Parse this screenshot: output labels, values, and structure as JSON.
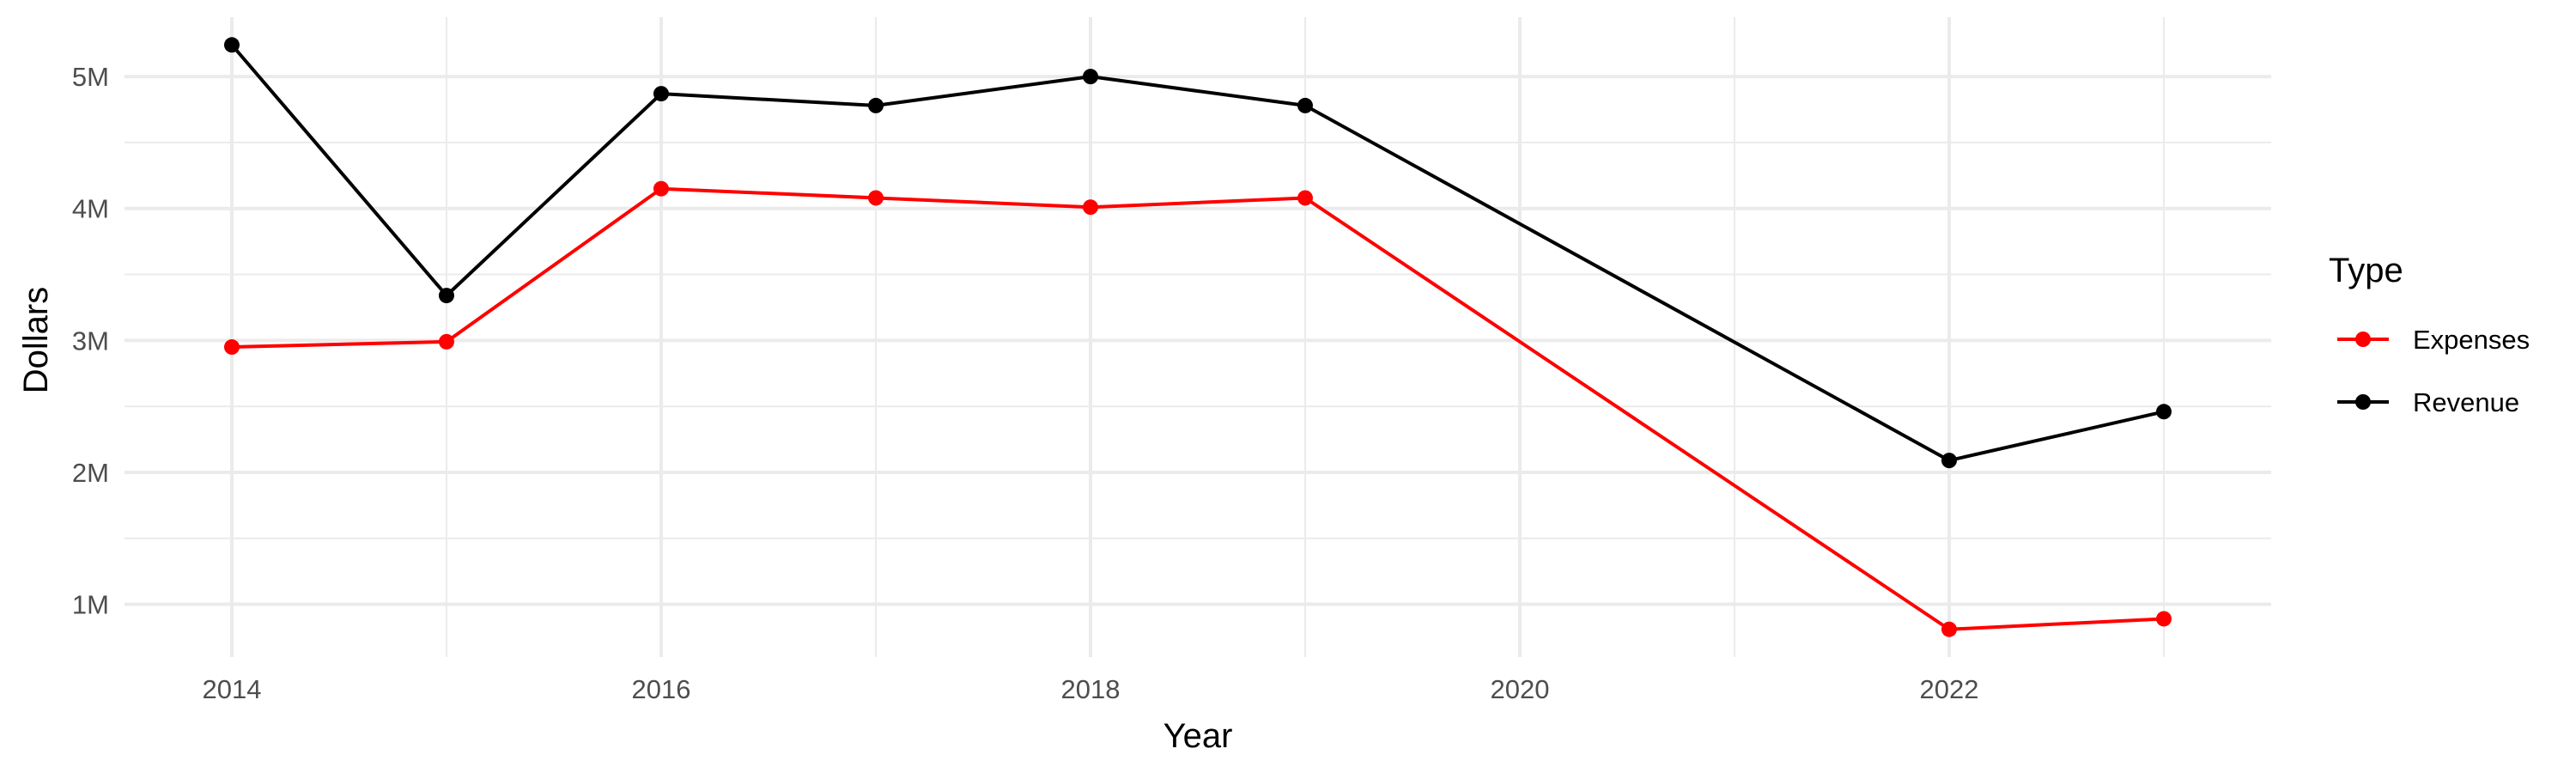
{
  "chart_data": {
    "type": "line",
    "xlabel": "Year",
    "ylabel": "Dollars",
    "xlim": [
      2013.5,
      2023.5
    ],
    "ylim": [
      0.6,
      5.45
    ],
    "x_ticks": [
      2014,
      2016,
      2018,
      2020,
      2022
    ],
    "y_ticks": [
      1,
      2,
      3,
      4,
      5
    ],
    "y_tick_labels": [
      "1M",
      "2M",
      "3M",
      "4M",
      "5M"
    ],
    "grid": true,
    "legend": {
      "title": "Type",
      "position": "right"
    },
    "series": [
      {
        "name": "Expenses",
        "color": "#ff0000",
        "x": [
          2014,
          2015,
          2016,
          2017,
          2018,
          2019,
          2022,
          2023
        ],
        "y": [
          2.95,
          2.99,
          4.15,
          4.08,
          4.01,
          4.08,
          0.81,
          0.89
        ]
      },
      {
        "name": "Revenue",
        "color": "#000000",
        "x": [
          2014,
          2015,
          2016,
          2017,
          2018,
          2019,
          2022,
          2023
        ],
        "y": [
          5.24,
          3.34,
          4.87,
          4.78,
          5.0,
          4.78,
          2.09,
          2.46
        ]
      }
    ]
  }
}
